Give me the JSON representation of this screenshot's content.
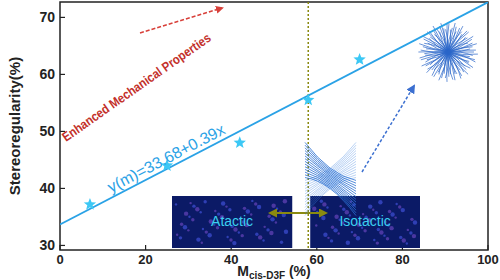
{
  "chart_data": {
    "type": "scatter",
    "x_label": {
      "text": "M",
      "subscript": "cis-D3F",
      "suffix": " (%)"
    },
    "y_label": "Stereoregularity(%)",
    "x": [
      7,
      25,
      42,
      58,
      70
    ],
    "y": [
      37.2,
      44,
      48,
      55.5,
      62.6
    ],
    "color": "#3cc8f5",
    "marker": "star",
    "xlim": [
      0,
      100
    ],
    "ylim": [
      29.2,
      72.7
    ],
    "xticks": [
      0,
      20,
      40,
      60,
      80,
      100
    ],
    "yticks": [
      30,
      40,
      50,
      60,
      70
    ],
    "fit": {
      "intercept": 33.68,
      "slope": 0.39,
      "label": "y(m)=33.68+0.39x"
    },
    "threshold_x": 58,
    "annotations": {
      "arrow_text": "Enhanced Mechanical Properties",
      "left_region": "Atactic",
      "right_region": "Isotactic"
    }
  }
}
